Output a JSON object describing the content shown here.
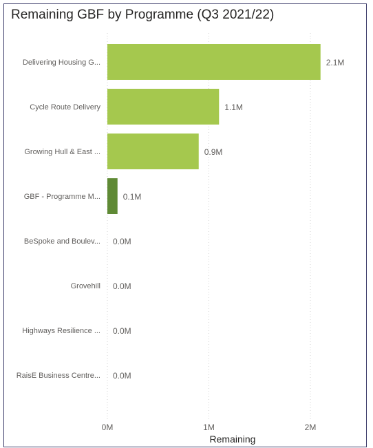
{
  "chart_data": {
    "type": "bar",
    "orientation": "horizontal",
    "title": "Remaining GBF by Programme (Q3 2021/22)",
    "xlabel": "Remaining",
    "ylabel": "",
    "xlim": [
      0,
      2.15
    ],
    "x_ticks": [
      "0M",
      "1M",
      "2M"
    ],
    "grid": true,
    "colors": {
      "default": "#a5c84e",
      "highlight": "#5f8a35"
    },
    "categories": [
      "Delivering Housing G...",
      "Cycle Route Delivery",
      "Growing Hull & East ...",
      "GBF - Programme M...",
      "BeSpoke and Boulev...",
      "Grovehill",
      "Highways Resilience ...",
      "RaisE Business Centre..."
    ],
    "values": [
      2.1,
      1.1,
      0.9,
      0.1,
      0.0,
      0.0,
      0.0,
      0.0
    ],
    "value_labels": [
      "2.1M",
      "1.1M",
      "0.9M",
      "0.1M",
      "0.0M",
      "0.0M",
      "0.0M",
      "0.0M"
    ],
    "highlighted": [
      false,
      false,
      false,
      true,
      false,
      false,
      false,
      false
    ]
  }
}
